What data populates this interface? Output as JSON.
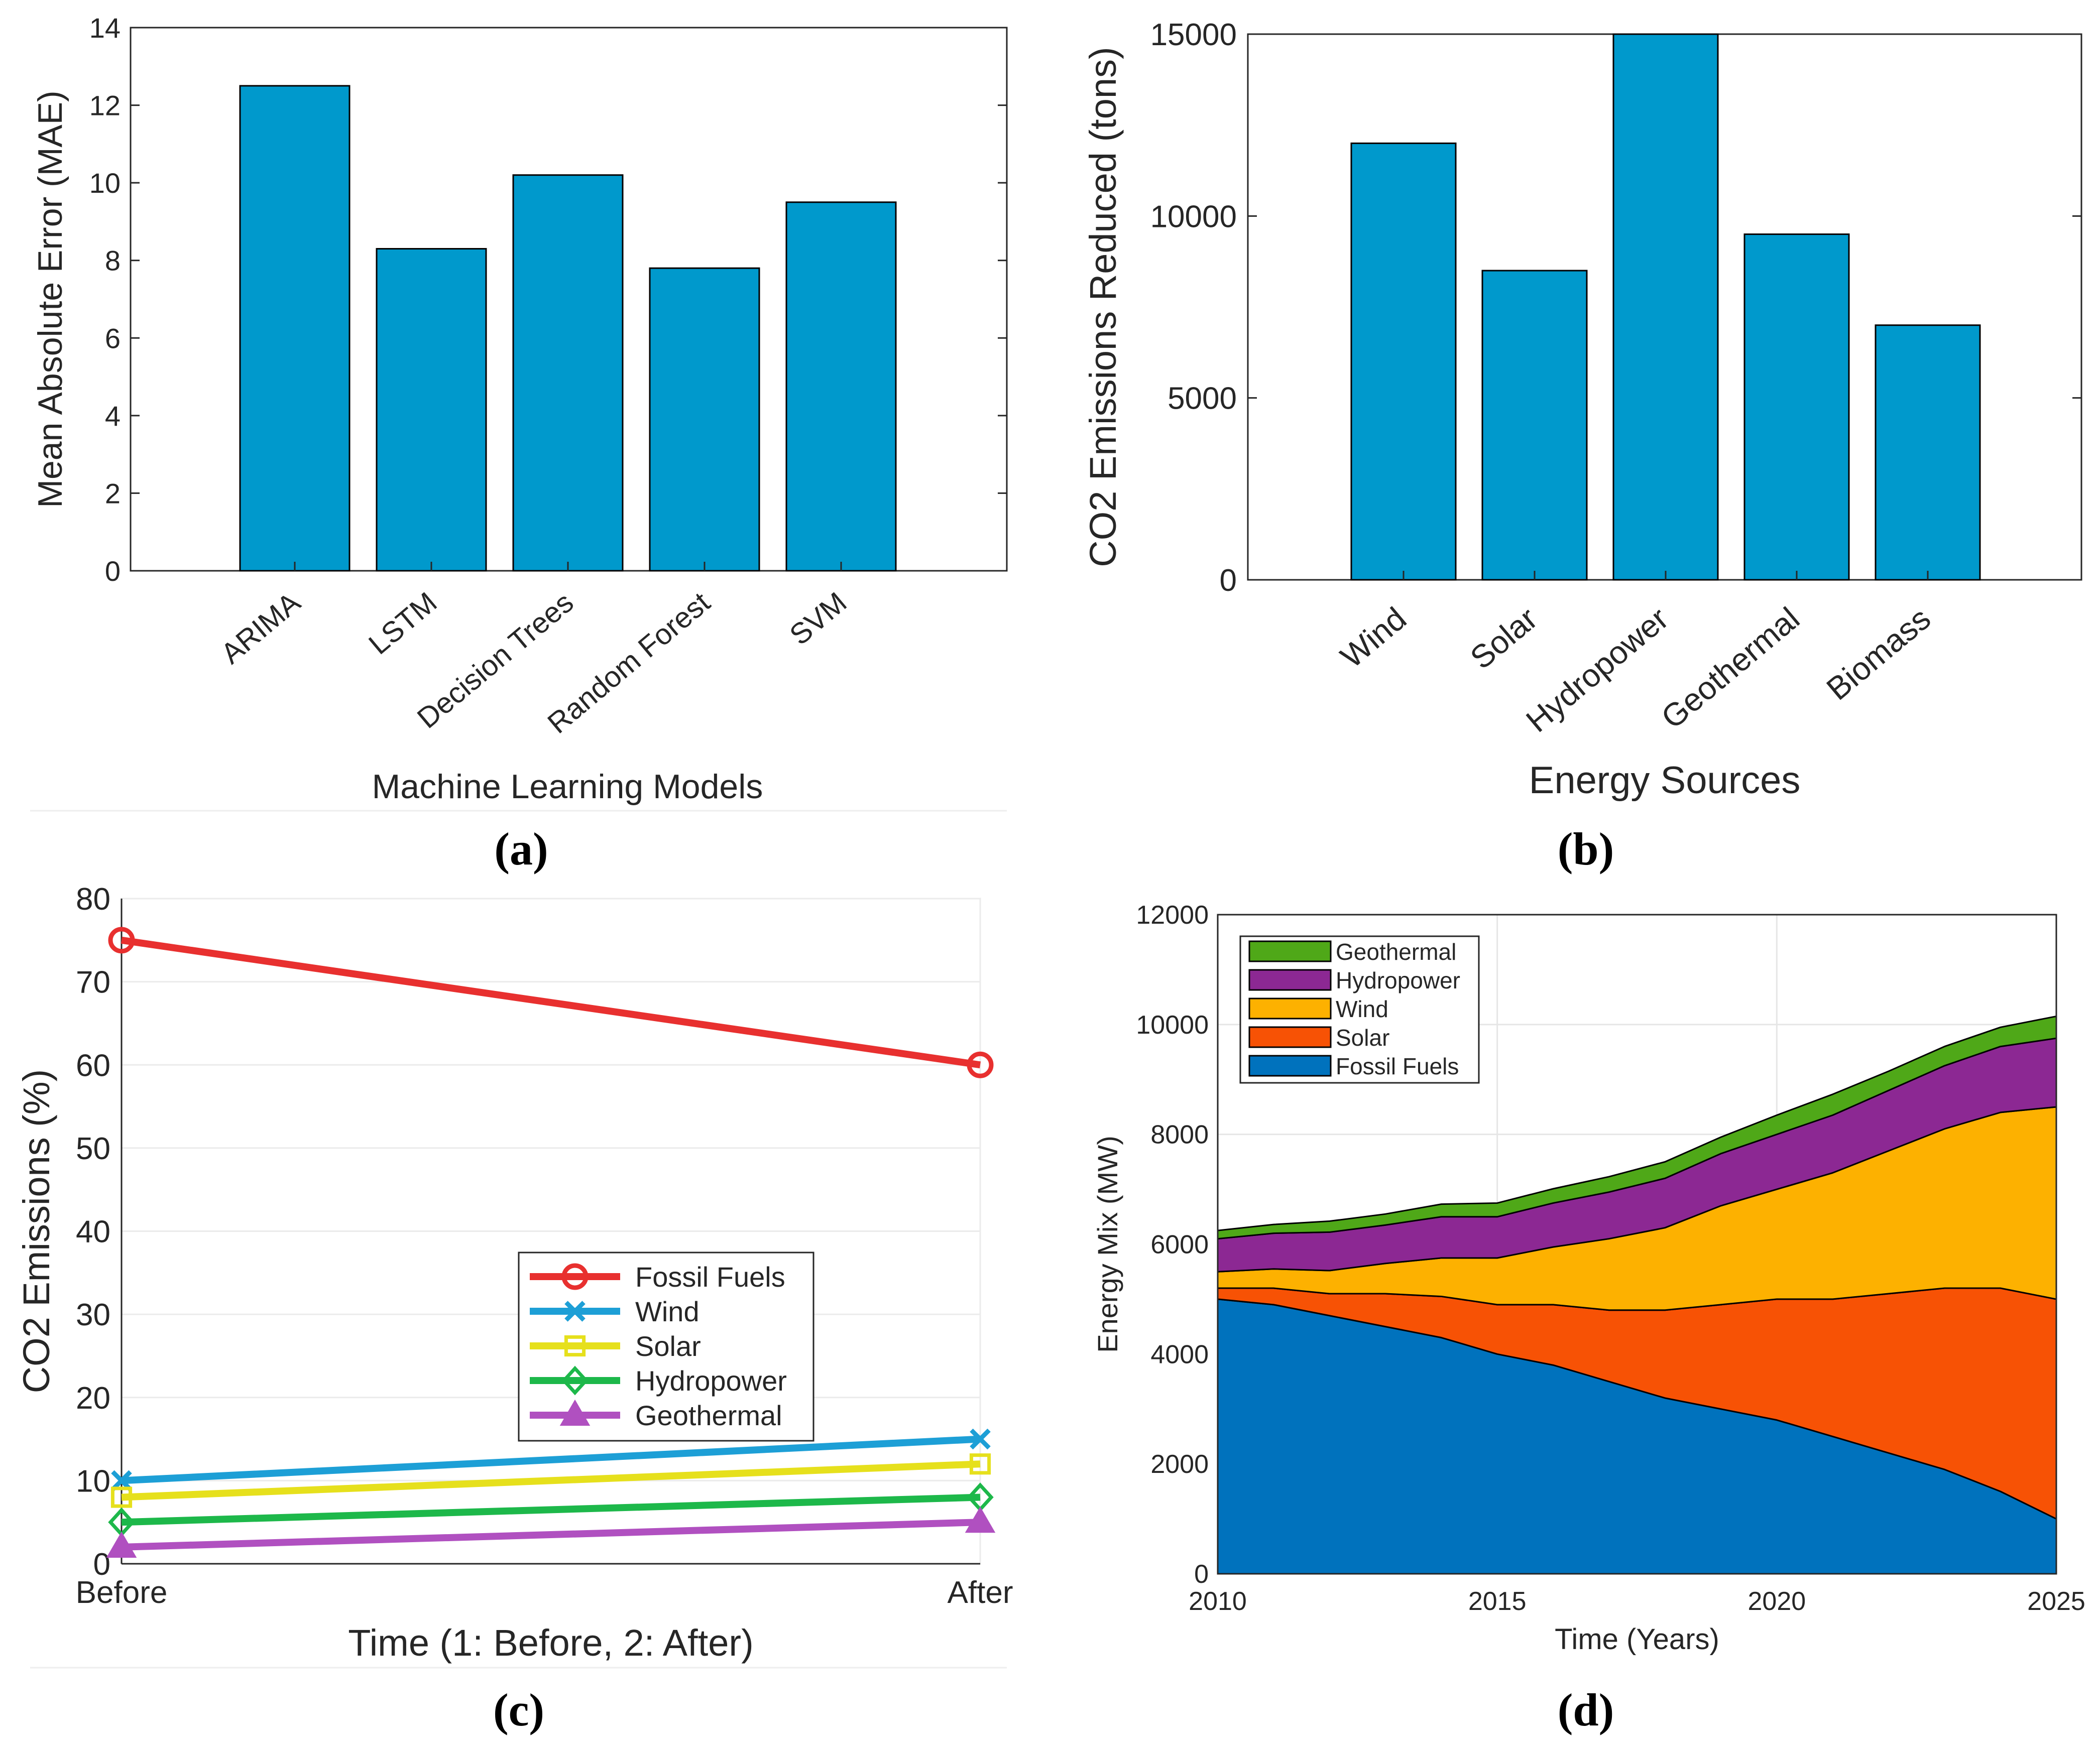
{
  "chart_data": [
    {
      "id": "a",
      "type": "bar",
      "panel_label": "(a)",
      "categories": [
        "ARIMA",
        "LSTM",
        "Decision Trees",
        "Random Forest",
        "SVM"
      ],
      "values": [
        12.5,
        8.3,
        10.2,
        7.8,
        9.5
      ],
      "xlabel": "Machine Learning Models",
      "ylabel": "Mean Absolute Error (MAE)",
      "ylim": [
        0,
        14
      ],
      "yticks": [
        0,
        2,
        4,
        6,
        8,
        10,
        12,
        14
      ],
      "grid": false,
      "bar_color": "#0099cc"
    },
    {
      "id": "b",
      "type": "bar",
      "panel_label": "(b)",
      "categories": [
        "Wind",
        "Solar",
        "Hydropower",
        "Geothermal",
        "Biomass"
      ],
      "values": [
        12000,
        8500,
        15000,
        9500,
        7000
      ],
      "xlabel": "Energy Sources",
      "ylabel": "CO2 Emissions Reduced (tons)",
      "ylim": [
        0,
        15000
      ],
      "yticks": [
        0,
        5000,
        10000,
        15000
      ],
      "grid": false,
      "bar_color": "#0099cc"
    },
    {
      "id": "c",
      "type": "line",
      "panel_label": "(c)",
      "x": [
        1,
        2
      ],
      "xticklabels": [
        "Before",
        "After"
      ],
      "xlabel": "Time (1: Before, 2: After)",
      "ylabel": "CO2 Emissions (%)",
      "ylim": [
        0,
        80
      ],
      "yticks": [
        0,
        10,
        20,
        30,
        40,
        50,
        60,
        70,
        80
      ],
      "grid": true,
      "legend_position": "center-right",
      "series": [
        {
          "name": "Fossil Fuels",
          "values": [
            75,
            60
          ],
          "color": "#e8302f",
          "marker": "circle"
        },
        {
          "name": "Wind",
          "values": [
            10,
            15
          ],
          "color": "#1d9fd6",
          "marker": "x"
        },
        {
          "name": "Solar",
          "values": [
            8,
            12
          ],
          "color": "#e6e01c",
          "marker": "square"
        },
        {
          "name": "Hydropower",
          "values": [
            5,
            8
          ],
          "color": "#1db84a",
          "marker": "diamond"
        },
        {
          "name": "Geothermal",
          "values": [
            2,
            5
          ],
          "color": "#b050c0",
          "marker": "triangle"
        }
      ]
    },
    {
      "id": "d",
      "type": "area",
      "panel_label": "(d)",
      "x": [
        2010,
        2011,
        2012,
        2013,
        2014,
        2015,
        2016,
        2017,
        2018,
        2019,
        2020,
        2021,
        2022,
        2023,
        2024,
        2025
      ],
      "xticks": [
        2010,
        2015,
        2020,
        2025
      ],
      "xlabel": "Time (Years)",
      "ylabel": "Energy Mix (MW)",
      "ylim": [
        0,
        12000
      ],
      "yticks": [
        0,
        2000,
        4000,
        6000,
        8000,
        10000,
        12000
      ],
      "grid": true,
      "legend_position": "top-left",
      "series": [
        {
          "name": "Fossil Fuels",
          "color": "#0072bd",
          "values": [
            5000,
            4900,
            4700,
            4500,
            4300,
            4000,
            3800,
            3500,
            3200,
            3000,
            2800,
            2500,
            2200,
            1900,
            1500,
            1000
          ]
        },
        {
          "name": "Solar",
          "color": "#f75205",
          "values": [
            200,
            300,
            400,
            600,
            750,
            900,
            1100,
            1300,
            1600,
            1900,
            2200,
            2500,
            2900,
            3300,
            3700,
            4000
          ]
        },
        {
          "name": "Wind",
          "color": "#fdb100",
          "values": [
            300,
            350,
            420,
            550,
            700,
            850,
            1050,
            1300,
            1500,
            1800,
            2000,
            2300,
            2600,
            2900,
            3200,
            3500
          ]
        },
        {
          "name": "Hydropower",
          "color": "#8c2893",
          "values": [
            600,
            650,
            700,
            700,
            750,
            750,
            800,
            850,
            900,
            950,
            1000,
            1050,
            1100,
            1150,
            1200,
            1250
          ]
        },
        {
          "name": "Geothermal",
          "color": "#4fa818",
          "values": [
            150,
            160,
            200,
            200,
            230,
            250,
            260,
            280,
            300,
            300,
            350,
            380,
            350,
            350,
            350,
            400
          ]
        }
      ],
      "legend_order": [
        "Geothermal",
        "Hydropower",
        "Wind",
        "Solar",
        "Fossil Fuels"
      ]
    }
  ]
}
